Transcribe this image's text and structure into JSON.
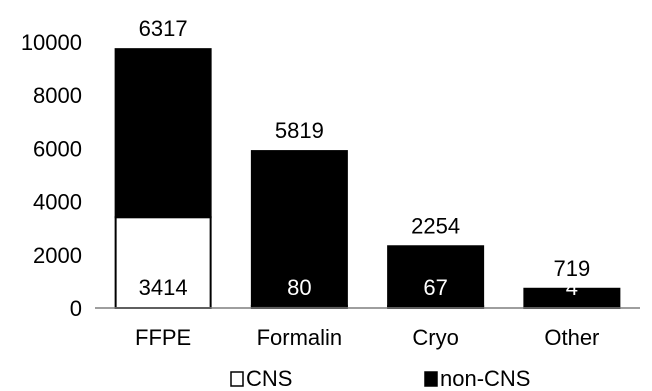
{
  "chart_data": {
    "type": "bar",
    "stacked": true,
    "categories": [
      "FFPE",
      "Formalin",
      "Cryo",
      "Other"
    ],
    "series": [
      {
        "name": "CNS",
        "values": [
          3414,
          80,
          67,
          4
        ],
        "color": "#ffffff"
      },
      {
        "name": "non-CNS",
        "values": [
          6317,
          5819,
          2254,
          719
        ],
        "color": "#000000"
      }
    ],
    "ylim": [
      0,
      10000
    ],
    "yticks": [
      "0",
      "2000",
      "4000",
      "6000",
      "8000",
      "10000"
    ],
    "data_labels": {
      "CNS": [
        "3414",
        "80",
        "67",
        "4"
      ],
      "non-CNS": [
        "6317",
        "5819",
        "2254",
        "719"
      ]
    },
    "legend_position": "bottom",
    "grid": false
  }
}
